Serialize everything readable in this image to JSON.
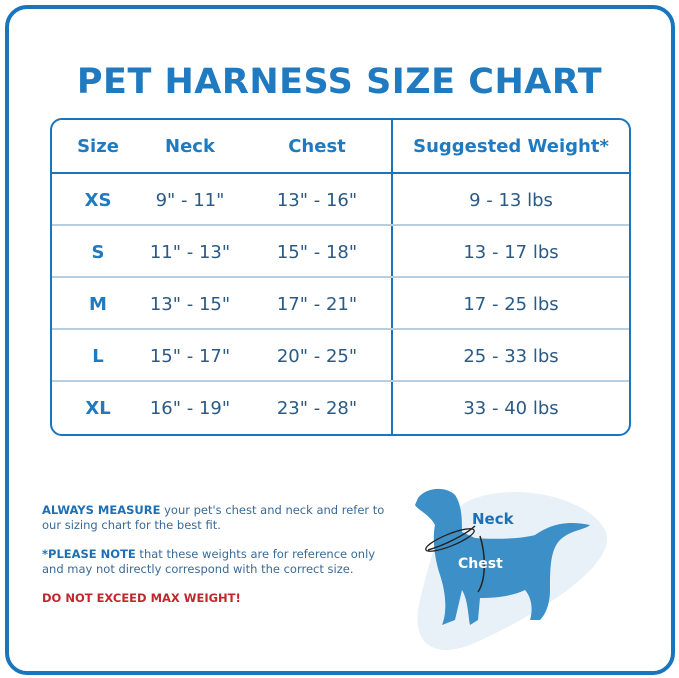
{
  "title": "PET HARNESS SIZE CHART",
  "table": {
    "headers": [
      "Size",
      "Neck",
      "Chest",
      "Suggested Weight*"
    ],
    "rows": [
      [
        "XS",
        "9\" - 11\"",
        "13\" - 16\"",
        "9 - 13 lbs"
      ],
      [
        "S",
        "11\" - 13\"",
        "15\" - 18\"",
        "13 - 17 lbs"
      ],
      [
        "M",
        "13\" - 15\"",
        "17\" - 21\"",
        "17 - 25  lbs"
      ],
      [
        "L",
        "15\" - 17\"",
        "20\" - 25\"",
        "25 - 33 lbs"
      ],
      [
        "XL",
        "16\" - 19\"",
        "23\" - 28\"",
        "33 - 40 lbs"
      ]
    ]
  },
  "notes": {
    "measure_bold": "ALWAYS MEASURE",
    "measure_text": " your pet's chest and neck and refer to our sizing chart for the best fit.",
    "note_bold": "*PLEASE NOTE",
    "note_text": " that these weights are for reference only and may not directly correspond with the correct size.",
    "warning": "DO NOT EXCEED MAX WEIGHT!"
  },
  "illustration": {
    "neck_label": "Neck",
    "chest_label": "Chest"
  },
  "colors": {
    "brand_blue": "#1b75bc",
    "warning_red": "#c0282d",
    "dog_blue": "#3d8fc8"
  }
}
